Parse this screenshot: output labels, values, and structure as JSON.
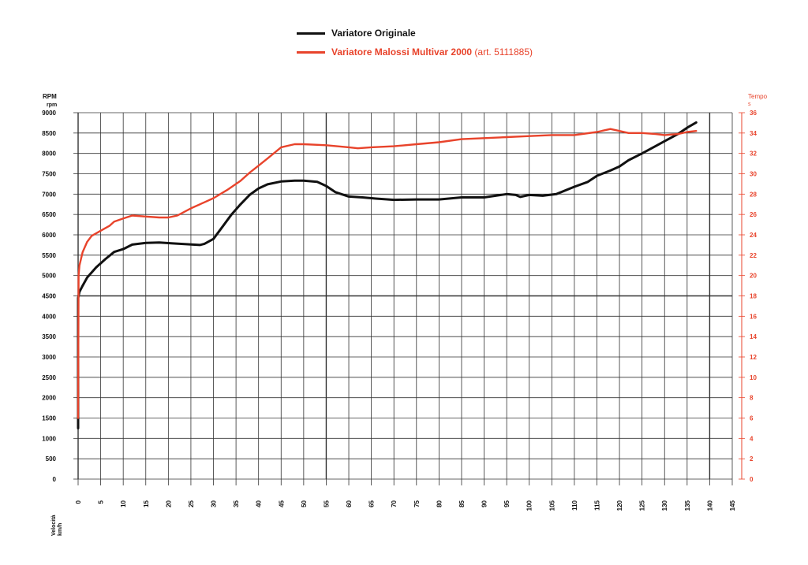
{
  "chart_data": {
    "type": "line",
    "legend": [
      {
        "label": "Variatore Originale",
        "suffix": "",
        "color": "#111111"
      },
      {
        "label": "Variatore Malossi Multivar 2000",
        "suffix": " (art. 5111885)",
        "color": "#e8432b"
      }
    ],
    "left_axis": {
      "title": "RPM",
      "unit": "rpm",
      "ticks": [
        "0",
        "500",
        "1000",
        "1500",
        "2000",
        "2500",
        "3000",
        "3500",
        "4000",
        "4500",
        "5000",
        "5500",
        "6000",
        "6500",
        "7000",
        "7500",
        "8000",
        "8500",
        "9000"
      ],
      "range": [
        0,
        9000
      ],
      "color": "#111111"
    },
    "right_axis": {
      "title": "Tempo",
      "unit": "s",
      "ticks": [
        "0",
        "2",
        "4",
        "6",
        "8",
        "10",
        "12",
        "14",
        "16",
        "18",
        "20",
        "22",
        "24",
        "26",
        "28",
        "30",
        "32",
        "34",
        "36"
      ],
      "range": [
        0,
        36
      ],
      "color": "#e8432b"
    },
    "x_axis": {
      "title": "Velocità",
      "unit": "km/h",
      "ticks": [
        "0",
        "5",
        "10",
        "15",
        "20",
        "25",
        "30",
        "35",
        "40",
        "45",
        "50",
        "55",
        "60",
        "65",
        "70",
        "75",
        "80",
        "85",
        "90",
        "95",
        "100",
        "105",
        "110",
        "115",
        "120",
        "125",
        "130",
        "135",
        "140",
        "145"
      ],
      "range": [
        0,
        145
      ]
    },
    "grid": true,
    "series": [
      {
        "name": "Variatore Originale",
        "axis": "left",
        "color": "#111111",
        "x": [
          0,
          0,
          0,
          0.3,
          1,
          2,
          4,
          6,
          8,
          10,
          12,
          15,
          18,
          21,
          24,
          27,
          28,
          30,
          32,
          34,
          36,
          38,
          40,
          42,
          45,
          48,
          50,
          53,
          55,
          57,
          60,
          63,
          66,
          70,
          75,
          80,
          85,
          90,
          95,
          97,
          98,
          100,
          103,
          106,
          110,
          113,
          115,
          118,
          120,
          122,
          125,
          128,
          130,
          133,
          135,
          137
        ],
        "y": [
          1250,
          1550,
          4450,
          4600,
          4750,
          4950,
          5200,
          5400,
          5580,
          5650,
          5760,
          5800,
          5810,
          5790,
          5770,
          5750,
          5780,
          5900,
          6200,
          6500,
          6750,
          6980,
          7140,
          7240,
          7310,
          7330,
          7330,
          7300,
          7200,
          7050,
          6940,
          6920,
          6890,
          6860,
          6870,
          6870,
          6920,
          6920,
          7000,
          6980,
          6930,
          6980,
          6960,
          7000,
          7180,
          7300,
          7450,
          7580,
          7680,
          7830,
          8000,
          8180,
          8300,
          8480,
          8630,
          8760
        ]
      },
      {
        "name": "Variatore Malossi Multivar 2000",
        "axis": "right",
        "color": "#e8432b",
        "x": [
          0,
          0.1,
          0.3,
          1,
          2,
          3,
          5,
          7,
          8,
          10,
          12,
          15,
          18,
          20,
          22,
          25,
          28,
          30,
          33,
          36,
          38,
          40,
          42,
          45,
          48,
          50,
          55,
          60,
          62,
          65,
          70,
          75,
          80,
          85,
          90,
          95,
          100,
          105,
          110,
          115,
          118,
          120,
          122,
          125,
          128,
          130,
          133,
          135,
          137
        ],
        "y": [
          6,
          20,
          21,
          22.3,
          23.3,
          23.9,
          24.4,
          24.9,
          25.3,
          25.6,
          25.9,
          25.8,
          25.7,
          25.7,
          25.9,
          26.6,
          27.2,
          27.6,
          28.4,
          29.3,
          30.1,
          30.8,
          31.5,
          32.6,
          32.9,
          32.9,
          32.8,
          32.6,
          32.5,
          32.6,
          32.7,
          32.9,
          33.1,
          33.4,
          33.5,
          33.6,
          33.7,
          33.8,
          33.8,
          34.1,
          34.4,
          34.2,
          34.0,
          34.0,
          33.9,
          33.8,
          33.9,
          34.1,
          34.2
        ]
      }
    ]
  }
}
